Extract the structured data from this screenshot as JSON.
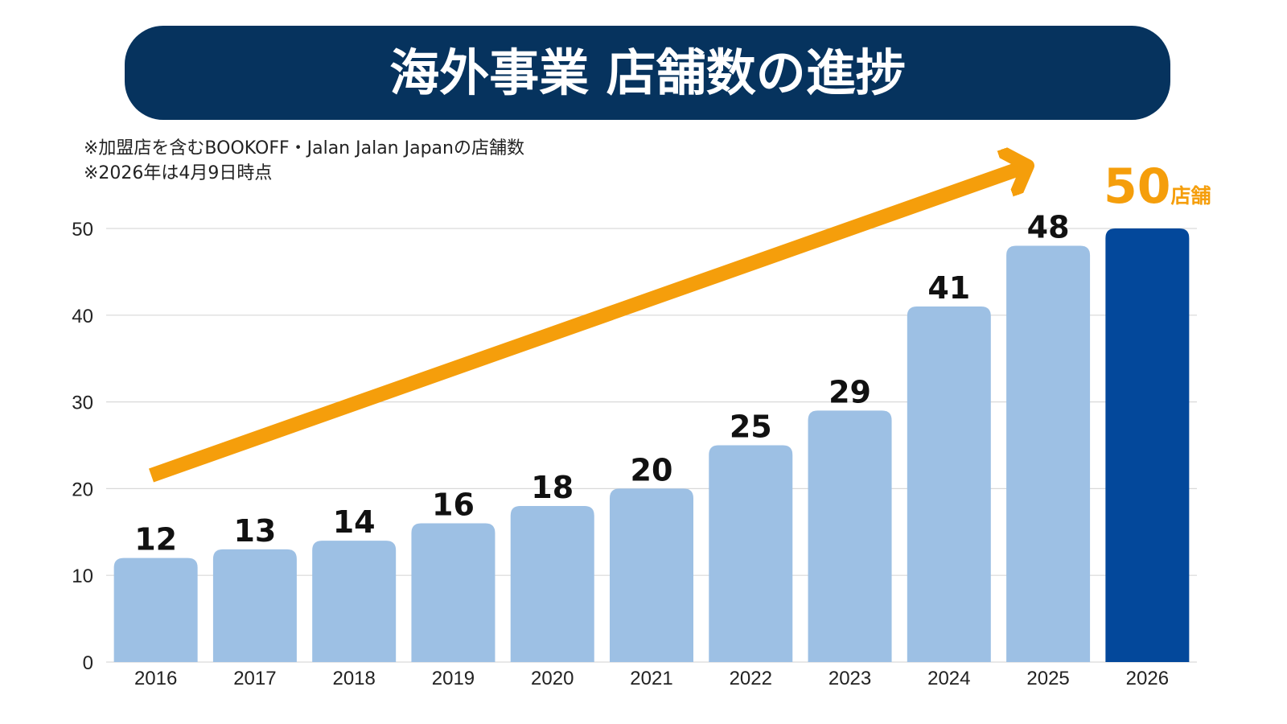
{
  "title": "海外事業 店舗数の進捗",
  "notes": [
    "※加盟店を含むBOOKOFF・Jalan Jalan Japanの店舗数",
    "※2026年は4月9日時点"
  ],
  "highlight": {
    "value": "50",
    "unit": "店舗"
  },
  "colors": {
    "title_bg": "#06335E",
    "bar": "#9DC0E4",
    "bar_highlight": "#03489B",
    "arrow": "#F59E0B",
    "grid": "#D9D9D9"
  },
  "chart_data": {
    "type": "bar",
    "title": "海外事業 店舗数の進捗",
    "xlabel": "",
    "ylabel": "",
    "ylim": [
      0,
      50
    ],
    "yticks": [
      0,
      10,
      20,
      30,
      40,
      50
    ],
    "grid": true,
    "categories": [
      "2016",
      "2017",
      "2018",
      "2019",
      "2020",
      "2021",
      "2022",
      "2023",
      "2024",
      "2025",
      "2026"
    ],
    "values": [
      12,
      13,
      14,
      16,
      18,
      20,
      25,
      29,
      41,
      48,
      50
    ],
    "data_labels": [
      "12",
      "13",
      "14",
      "16",
      "18",
      "20",
      "25",
      "29",
      "41",
      "48",
      ""
    ],
    "highlight_category": "2026",
    "annotation": "upward trend arrow"
  }
}
